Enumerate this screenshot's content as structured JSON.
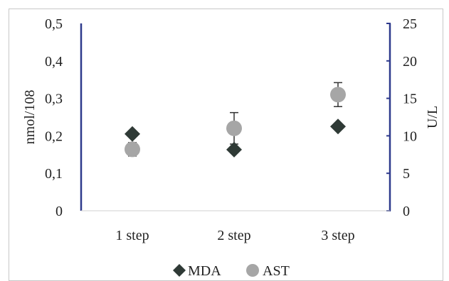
{
  "chart_data": {
    "type": "scatter",
    "categories": [
      "1 step",
      "2 step",
      "3 step"
    ],
    "y_left": {
      "label": "nmol/108",
      "ylim": [
        0,
        0.5
      ],
      "ticks": [
        "0",
        "0,1",
        "0,2",
        "0,3",
        "0,4",
        "0,5"
      ]
    },
    "y_right": {
      "label": "U/L",
      "ylim": [
        0,
        25
      ],
      "ticks": [
        "0",
        "5",
        "10",
        "15",
        "20",
        "25"
      ]
    },
    "series": [
      {
        "name": "MDA",
        "axis": "left",
        "marker": "diamond",
        "color": "#2f3a36",
        "values": [
          0.205,
          0.163,
          0.225
        ],
        "errors": [
          null,
          null,
          null
        ]
      },
      {
        "name": "AST",
        "axis": "right",
        "marker": "circle",
        "color": "#a6a6a6",
        "values": [
          8.2,
          11.0,
          15.5
        ],
        "errors": [
          0.9,
          2.1,
          1.6
        ]
      }
    ],
    "grid": false,
    "legend_position": "bottom",
    "axis_color": "#2e3a8c"
  }
}
